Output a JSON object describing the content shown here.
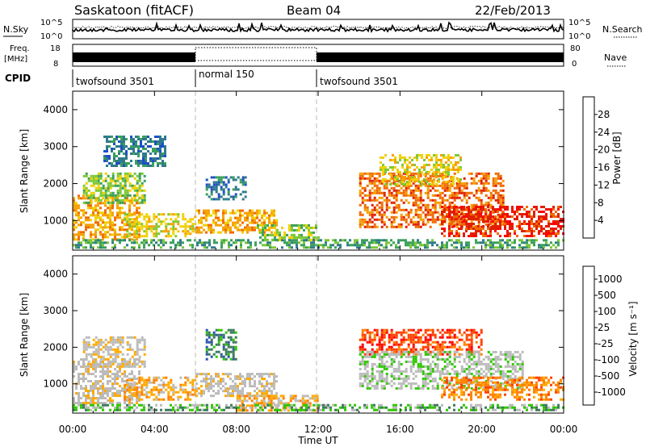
{
  "header": {
    "station": "Saskatoon (fitACF)",
    "beam": "Beam 04",
    "date": "22/Feb/2013"
  },
  "noise_panel": {
    "left_label": "N.Sky",
    "left_ticks": [
      "10^5",
      "10^0"
    ],
    "right_label": "N.Search",
    "right_ticks": [
      "10^5",
      "10^0"
    ]
  },
  "freq_panel": {
    "left_label_1": "Freq.",
    "left_label_2": "[MHz]",
    "left_ticks": [
      "18",
      "8"
    ],
    "right_label": "Nave",
    "right_ticks": [
      "80",
      "0"
    ]
  },
  "cpid_panel": {
    "label": "CPID",
    "segments": [
      {
        "name": "twofsound 3501",
        "start_h": 0,
        "end_h": 6
      },
      {
        "name": "normal 150",
        "start_h": 6,
        "end_h": 12
      },
      {
        "name": "twofsound 3501",
        "start_h": 12,
        "end_h": 24
      }
    ]
  },
  "colors": {
    "power_scale": [
      "#0018ff",
      "#1e4fc8",
      "#2f7a8c",
      "#39a05a",
      "#7cc832",
      "#f0d000",
      "#f5a000",
      "#f06a00",
      "#e02000",
      "#ff0000"
    ],
    "velocity_scale": [
      "#ff0000",
      "#ff4000",
      "#ff8000",
      "#ffaa00",
      "#bbbbbb",
      "#bbbbbb",
      "#2ec800",
      "#3d7a5a",
      "#2a55aa",
      "#1030ff"
    ]
  },
  "chart_data": [
    {
      "type": "heatmap",
      "name": "power",
      "ylabel": "Slant Range [km]",
      "x_range_h": [
        0,
        24
      ],
      "ylim": [
        200,
        4500
      ],
      "y_ticks": [
        1000,
        2000,
        3000,
        4000
      ],
      "colorbar": {
        "label": "Power [dB]",
        "range": [
          0,
          32
        ],
        "ticks": [
          4,
          8,
          12,
          16,
          20,
          24,
          28
        ]
      },
      "regions": [
        {
          "t0": 0.0,
          "t1": 3.2,
          "r0": 500,
          "r1": 1700,
          "val": 22
        },
        {
          "t0": 0.5,
          "t1": 3.5,
          "r0": 1500,
          "r1": 2300,
          "val": 14
        },
        {
          "t0": 1.5,
          "t1": 4.5,
          "r0": 2500,
          "r1": 3300,
          "val": 8
        },
        {
          "t0": 2.5,
          "t1": 6.0,
          "r0": 600,
          "r1": 1200,
          "val": 16
        },
        {
          "t0": 6.0,
          "t1": 10.0,
          "r0": 700,
          "r1": 1300,
          "val": 20
        },
        {
          "t0": 9.0,
          "t1": 12.0,
          "r0": 500,
          "r1": 900,
          "val": 14
        },
        {
          "t0": 6.5,
          "t1": 8.5,
          "r0": 1600,
          "r1": 2200,
          "val": 8
        },
        {
          "t0": 14.0,
          "t1": 21.0,
          "r0": 800,
          "r1": 2300,
          "val": 24
        },
        {
          "t0": 15.0,
          "t1": 19.0,
          "r0": 2000,
          "r1": 2800,
          "val": 16
        },
        {
          "t0": 18.0,
          "t1": 24.0,
          "r0": 600,
          "r1": 1400,
          "val": 26
        },
        {
          "t0": 0.0,
          "t1": 24.0,
          "r0": 300,
          "r1": 500,
          "val": 10
        }
      ]
    },
    {
      "type": "heatmap",
      "name": "velocity",
      "ylabel": "Slant Range [km]",
      "xlabel": "Time UT",
      "x_range_h": [
        0,
        24
      ],
      "x_ticks": [
        "00:00",
        "04:00",
        "08:00",
        "12:00",
        "16:00",
        "20:00",
        "00:00"
      ],
      "ylim": [
        200,
        4500
      ],
      "y_ticks": [
        1000,
        2000,
        3000,
        4000
      ],
      "colorbar": {
        "label": "Velocity [m s⁻¹]",
        "ticks": [
          "1000",
          "500",
          "100",
          "25",
          "-25",
          "-100",
          "-500",
          "-1000"
        ]
      },
      "regions": [
        {
          "t0": 0.0,
          "t1": 3.2,
          "r0": 500,
          "r1": 1700,
          "val": 4
        },
        {
          "t0": 0.5,
          "t1": 3.5,
          "r0": 1500,
          "r1": 2300,
          "val": 4
        },
        {
          "t0": 2.5,
          "t1": 6.0,
          "r0": 600,
          "r1": 1200,
          "val": 3
        },
        {
          "t0": 6.5,
          "t1": 8.0,
          "r0": 1700,
          "r1": 2500,
          "val": 7
        },
        {
          "t0": 6.0,
          "t1": 10.0,
          "r0": 700,
          "r1": 1300,
          "val": 4
        },
        {
          "t0": 8.0,
          "t1": 12.0,
          "r0": 300,
          "r1": 700,
          "val": 3
        },
        {
          "t0": 14.0,
          "t1": 20.0,
          "r0": 1800,
          "r1": 2500,
          "val": 1
        },
        {
          "t0": 14.0,
          "t1": 22.0,
          "r0": 900,
          "r1": 1900,
          "val": 5
        },
        {
          "t0": 18.0,
          "t1": 24.0,
          "r0": 600,
          "r1": 1200,
          "val": 2
        },
        {
          "t0": 0.0,
          "t1": 24.0,
          "r0": 300,
          "r1": 450,
          "val": 6
        }
      ]
    }
  ]
}
